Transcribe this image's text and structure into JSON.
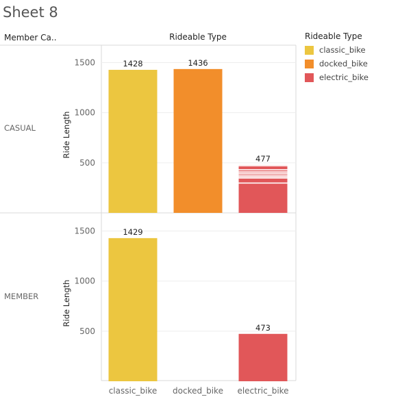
{
  "sheet": {
    "title": "Sheet 8"
  },
  "headers": {
    "rows": "Member Ca..",
    "columns": "Rideable Type"
  },
  "legend": {
    "title": "Rideable Type",
    "items": [
      {
        "label": "classic_bike",
        "color": "#ECC640"
      },
      {
        "label": "docked_bike",
        "color": "#F28E2B"
      },
      {
        "label": "electric_bike",
        "color": "#E15759"
      }
    ]
  },
  "chart_data": {
    "type": "bar",
    "categories": [
      "classic_bike",
      "docked_bike",
      "electric_bike"
    ],
    "ylabel": "Ride Length",
    "ylim": [
      0,
      1640
    ],
    "yticks": [
      500,
      1000,
      1500
    ],
    "grid": true,
    "legend_position": "right",
    "panels": [
      {
        "row": "CASUAL",
        "values": [
          1428,
          1436,
          477
        ],
        "labels": [
          "1428",
          "1436",
          "477"
        ]
      },
      {
        "row": "MEMBER",
        "values": [
          1429,
          null,
          473
        ],
        "labels": [
          "1429",
          "",
          "473"
        ]
      }
    ]
  }
}
